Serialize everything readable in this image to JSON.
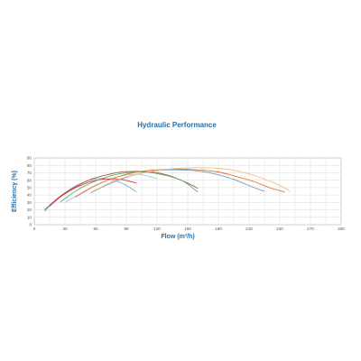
{
  "chart_data": {
    "type": "line",
    "title": "Hydraulic Performance",
    "xlabel": "Flow (m³/h)",
    "ylabel": "Efficiency (%)",
    "xlim": [
      0,
      300
    ],
    "ylim": [
      0,
      90
    ],
    "xticks": [
      0,
      30,
      60,
      90,
      120,
      150,
      180,
      210,
      240,
      270,
      300
    ],
    "yticks": [
      0,
      10,
      20,
      30,
      40,
      50,
      60,
      70,
      80,
      90
    ],
    "grid": true,
    "legend": "none",
    "series": [
      {
        "color": "#7fb2d6",
        "x": [
          10,
          20,
          30,
          40,
          50,
          60,
          70,
          80,
          90,
          100
        ],
        "y": [
          18,
          32,
          43,
          52,
          58,
          62,
          62,
          59,
          53,
          44
        ]
      },
      {
        "color": "#e03030",
        "x": [
          15,
          25,
          35,
          45,
          55,
          65,
          75,
          85,
          95,
          100
        ],
        "y": [
          25,
          37,
          46,
          53,
          58,
          61,
          62,
          61,
          58,
          56
        ]
      },
      {
        "color": "#a9c7e6",
        "x": [
          30,
          40,
          50,
          60,
          70,
          80,
          90,
          100,
          110,
          120
        ],
        "y": [
          30,
          38,
          46,
          53,
          59,
          64,
          67,
          68,
          66,
          62
        ]
      },
      {
        "color": "#aa5a55",
        "x": [
          10,
          25,
          40,
          55,
          70,
          85,
          100,
          115,
          130,
          140,
          150,
          160
        ],
        "y": [
          20,
          38,
          51,
          61,
          67,
          71,
          72,
          71,
          67,
          62,
          56,
          49
        ]
      },
      {
        "color": "#5ab06a",
        "x": [
          25,
          40,
          55,
          70,
          85,
          100,
          115,
          130,
          145,
          160
        ],
        "y": [
          30,
          45,
          56,
          64,
          69,
          71,
          70,
          66,
          59,
          44
        ]
      },
      {
        "color": "#e07a3a",
        "x": [
          40,
          60,
          80,
          100,
          120,
          140,
          160,
          180,
          200,
          215,
          230,
          245
        ],
        "y": [
          37,
          53,
          64,
          71,
          74,
          75,
          74,
          71,
          64,
          58,
          50,
          44
        ]
      },
      {
        "color": "#6a9bc0",
        "x": [
          55,
          75,
          95,
          115,
          135,
          155,
          175,
          195,
          215,
          225
        ],
        "y": [
          43,
          56,
          66,
          72,
          74,
          73,
          69,
          61,
          50,
          45
        ]
      },
      {
        "color": "#f0c080",
        "x": [
          60,
          80,
          100,
          120,
          140,
          160,
          180,
          200,
          220,
          240,
          250
        ],
        "y": [
          47,
          60,
          68,
          73,
          76,
          77,
          76,
          72,
          64,
          53,
          45
        ]
      }
    ]
  }
}
